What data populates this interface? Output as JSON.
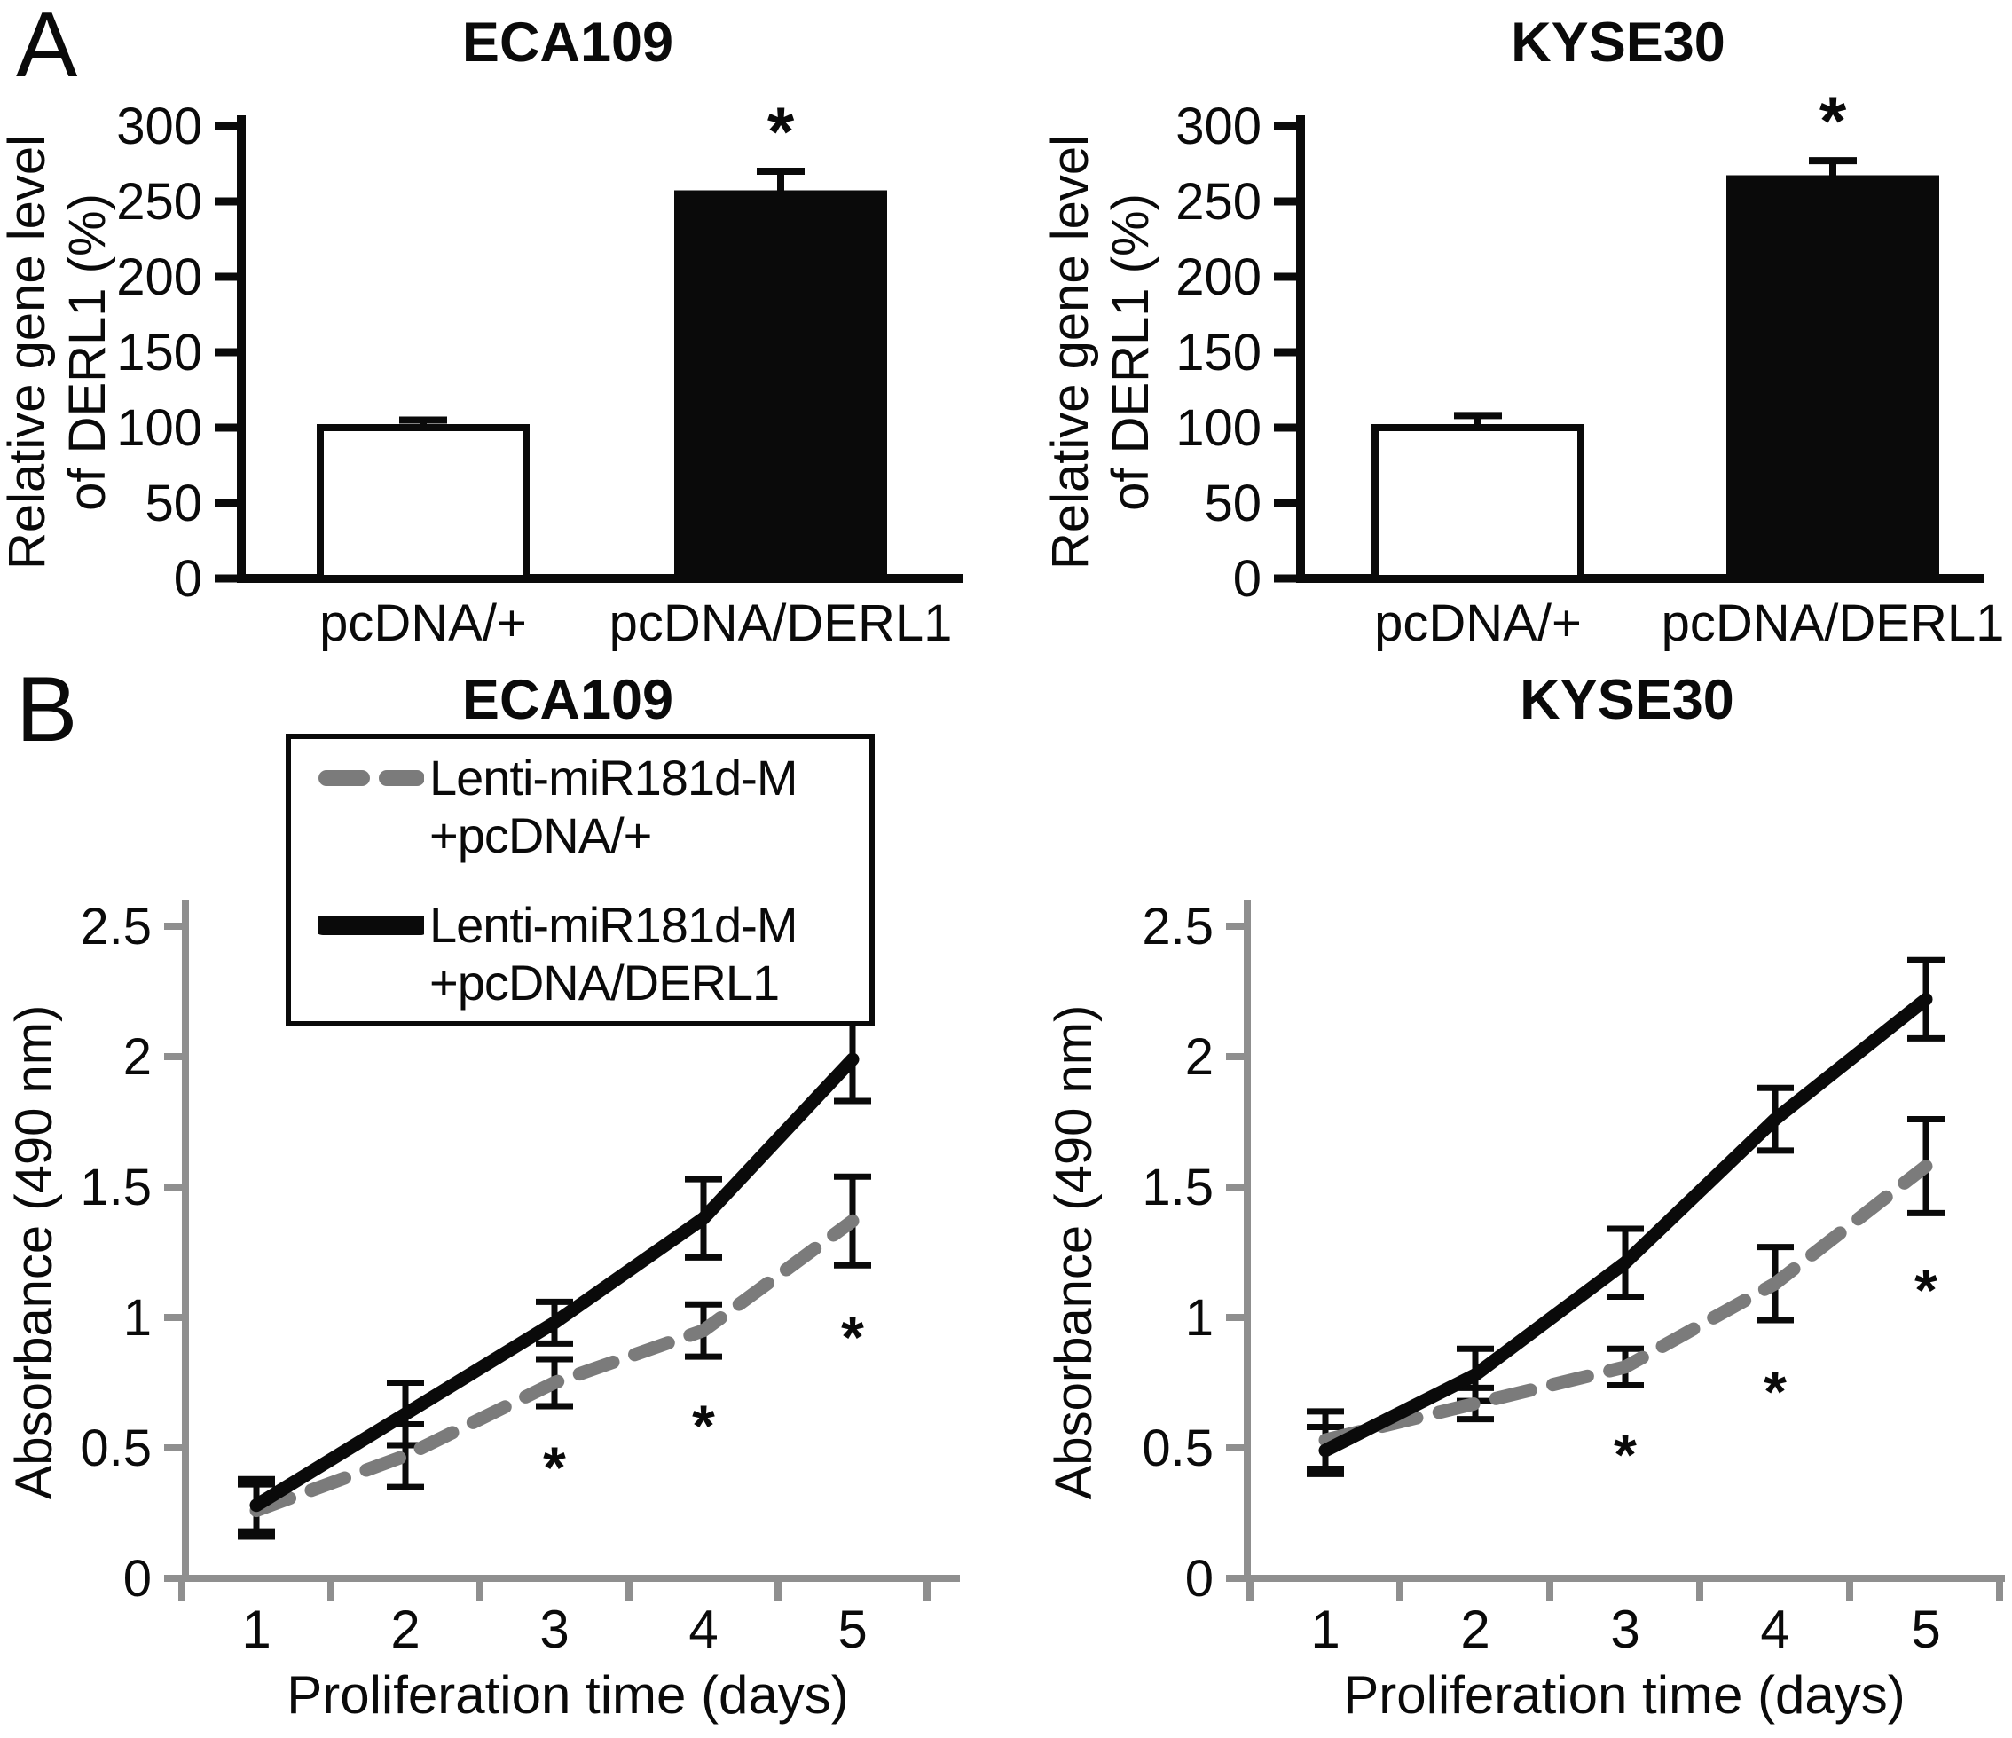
{
  "panels": {
    "a": "A",
    "b": "B"
  },
  "colors": {
    "black": "#0a0a0a",
    "gray_line": "#7b7b7b",
    "axis_gray": "#8f8f8f",
    "white": "#ffffff"
  },
  "legend": {
    "entries": [
      {
        "line1": "Lenti-miR181d-M",
        "line2": "+pcDNA/+",
        "style": "dashed-gray"
      },
      {
        "line1": "Lenti-miR181d-M",
        "line2": "+pcDNA/DERL1",
        "style": "solid-black"
      }
    ]
  },
  "chart_data": [
    {
      "type": "bar",
      "title": "ECA109",
      "ylabel_lines": [
        "Relative gene level",
        "of DERL1 (%)"
      ],
      "categories": [
        "pcDNA/+",
        "pcDNA/DERL1"
      ],
      "values": [
        100,
        255
      ],
      "errors": [
        5,
        15
      ],
      "bar_fills": [
        "#ffffff",
        "#0a0a0a"
      ],
      "significant": [
        false,
        true
      ],
      "sig_symbol": "*",
      "ylim": [
        0,
        300
      ],
      "yticks": [
        0,
        50,
        100,
        150,
        200,
        250,
        300
      ],
      "grid": false,
      "legend_position": "none"
    },
    {
      "type": "bar",
      "title": "KYSE30",
      "ylabel_lines": [
        "Relative gene level",
        "of DERL1 (%)"
      ],
      "categories": [
        "pcDNA/+",
        "pcDNA/DERL1"
      ],
      "values": [
        100,
        265
      ],
      "errors": [
        8,
        12
      ],
      "bar_fills": [
        "#ffffff",
        "#0a0a0a"
      ],
      "significant": [
        false,
        true
      ],
      "sig_symbol": "*",
      "ylim": [
        0,
        300
      ],
      "yticks": [
        0,
        50,
        100,
        150,
        200,
        250,
        300
      ],
      "grid": false,
      "legend_position": "none"
    },
    {
      "type": "line",
      "title": "ECA109",
      "ylabel": "Absorbance (490 nm)",
      "xlabel": "Proliferation time (days)",
      "x": [
        1,
        2,
        3,
        4,
        5
      ],
      "ylim": [
        0,
        2.5
      ],
      "yticks": [
        0,
        0.5,
        1,
        1.5,
        2,
        2.5
      ],
      "grid": false,
      "legend_position": "top-left-box",
      "series": [
        {
          "name": "Lenti-miR181d-M +pcDNA/+",
          "style": "dashed",
          "color": "#7b7b7b",
          "values": [
            0.26,
            0.47,
            0.75,
            0.95,
            1.37
          ],
          "errors": [
            0.1,
            0.12,
            0.09,
            0.1,
            0.17
          ],
          "sig": {
            "x": [
              3,
              4,
              5
            ],
            "y": [
              0.5,
              0.66,
              1.0
            ],
            "symbol": "*"
          }
        },
        {
          "name": "Lenti-miR181d-M +pcDNA/DERL1",
          "style": "solid",
          "color": "#0a0a0a",
          "values": [
            0.28,
            0.63,
            0.98,
            1.38,
            1.99
          ],
          "errors": [
            0.1,
            0.12,
            0.08,
            0.15,
            0.16
          ]
        }
      ]
    },
    {
      "type": "line",
      "title": "KYSE30",
      "ylabel": "Absorbance (490 nm)",
      "xlabel": "Proliferation time (days)",
      "x": [
        1,
        2,
        3,
        4,
        5
      ],
      "ylim": [
        0,
        2.5
      ],
      "yticks": [
        0,
        0.5,
        1,
        1.5,
        2,
        2.5
      ],
      "grid": false,
      "legend_position": "none",
      "series": [
        {
          "name": "Lenti-miR181d-M +pcDNA/+",
          "style": "dashed",
          "color": "#7b7b7b",
          "values": [
            0.53,
            0.67,
            0.81,
            1.13,
            1.58
          ],
          "errors": [
            0.11,
            0.06,
            0.07,
            0.14,
            0.18
          ],
          "sig": {
            "x": [
              3,
              4,
              5
            ],
            "y": [
              0.55,
              0.79,
              1.18
            ],
            "symbol": "*"
          }
        },
        {
          "name": "Lenti-miR181d-M +pcDNA/DERL1",
          "style": "solid",
          "color": "#0a0a0a",
          "values": [
            0.49,
            0.78,
            1.21,
            1.76,
            2.22
          ],
          "errors": [
            0.09,
            0.1,
            0.13,
            0.12,
            0.15
          ]
        }
      ]
    }
  ]
}
